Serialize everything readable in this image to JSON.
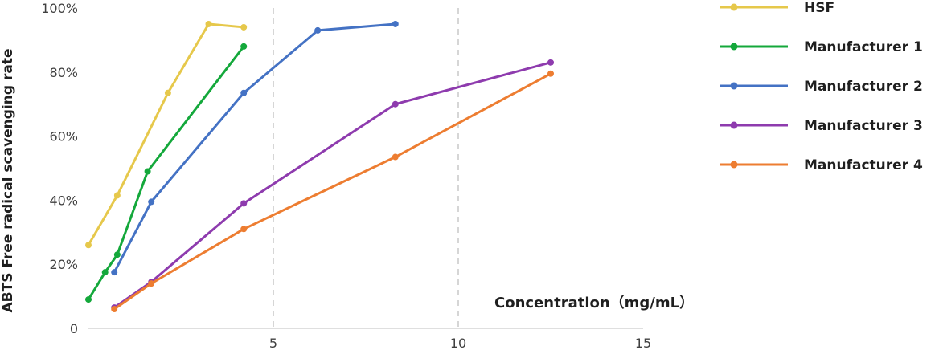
{
  "chart_data": {
    "type": "line",
    "xlabel": "Concentration（mg/mL）",
    "ylabel": "ABTS Free radical scavenging rate",
    "xlim": [
      0,
      15
    ],
    "ylim": [
      0,
      100
    ],
    "xticks": [
      "5",
      "10",
      "15"
    ],
    "yticks": [
      "0",
      "20%",
      "40%",
      "60%",
      "80%",
      "100%"
    ],
    "xtick_values": [
      5,
      10,
      15
    ],
    "ytick_values": [
      0,
      20,
      40,
      60,
      80,
      100
    ],
    "grid": "vertical dashed lines at x = 5 and x = 10",
    "legend_position": "right",
    "series": [
      {
        "name": "HSF",
        "color": "#E6C84B",
        "x": [
          0,
          0.78,
          2.15,
          3.25,
          4.2
        ],
        "y": [
          26,
          41.5,
          73.5,
          95,
          94
        ]
      },
      {
        "name": "Manufacturer 1",
        "color": "#14A83B",
        "x": [
          0,
          0.45,
          0.78,
          1.6,
          4.2
        ],
        "y": [
          9,
          17.5,
          23,
          49,
          88
        ]
      },
      {
        "name": "Manufacturer 2",
        "color": "#4472C4",
        "x": [
          0.7,
          1.7,
          4.2,
          6.2,
          8.3
        ],
        "y": [
          17.5,
          39.5,
          73.5,
          93,
          95
        ]
      },
      {
        "name": "Manufacturer 3",
        "color": "#8E3BAE",
        "x": [
          0.7,
          1.7,
          4.2,
          8.3,
          12.5
        ],
        "y": [
          6.5,
          14.5,
          39,
          70,
          83
        ]
      },
      {
        "name": "Manufacturer 4",
        "color": "#ED7D31",
        "x": [
          0.7,
          1.7,
          4.2,
          8.3,
          12.5
        ],
        "y": [
          6,
          14,
          31,
          53.5,
          79.5
        ]
      }
    ]
  }
}
